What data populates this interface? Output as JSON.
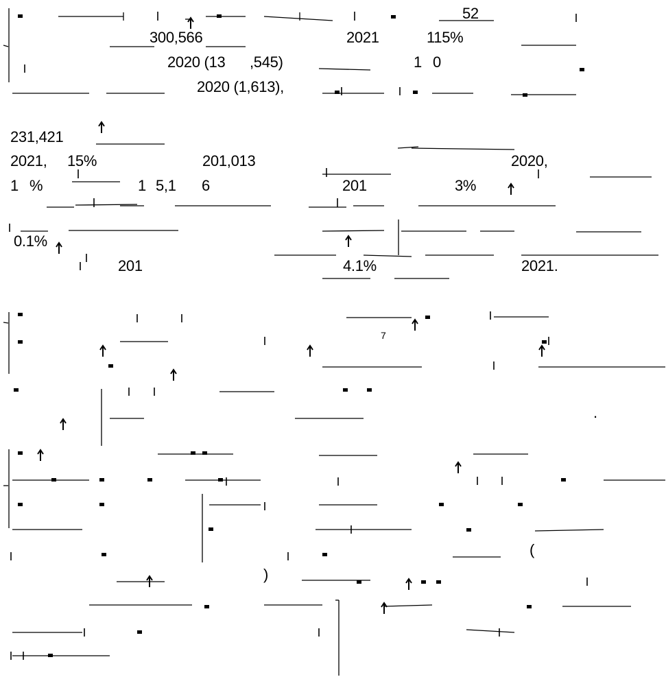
{
  "fragments": [
    "52",
    "300,566",
    "2021",
    "115%",
    "2020 (13",
    ",545)",
    "1",
    "0",
    "2020 (1,613),",
    "231,421",
    "2021,",
    "15%",
    "201,013",
    "2020,",
    "1",
    "%",
    "1",
    "5,1",
    "6",
    "201",
    "3%",
    "0.1%",
    "201",
    "4.1%",
    "2021.",
    "7",
    ".",
    "(",
    ")"
  ]
}
